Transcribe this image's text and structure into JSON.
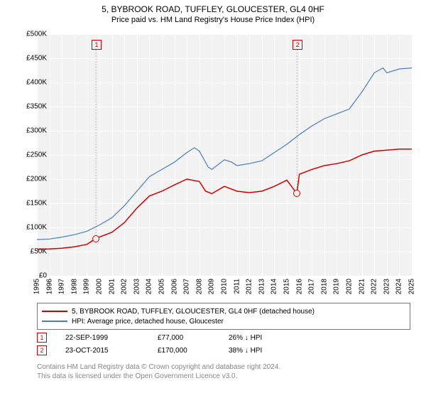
{
  "title_line1": "5, BYBROOK ROAD, TUFFLEY, GLOUCESTER, GL4 0HF",
  "title_line2": "Price paid vs. HM Land Registry's House Price Index (HPI)",
  "chart": {
    "type": "line",
    "background_color": "#f2f2f2",
    "grid_color": "#ffffff",
    "ylim": [
      0,
      500000
    ],
    "ytick_step": 50000,
    "ytick_prefix": "£",
    "ytick_suffix": "K",
    "ylabels": [
      "£0",
      "£50K",
      "£100K",
      "£150K",
      "£200K",
      "£250K",
      "£300K",
      "£350K",
      "£400K",
      "£450K",
      "£500K"
    ],
    "x_years": [
      1995,
      1996,
      1997,
      1998,
      1999,
      2000,
      2001,
      2002,
      2003,
      2004,
      2005,
      2006,
      2007,
      2008,
      2009,
      2010,
      2011,
      2012,
      2013,
      2014,
      2015,
      2016,
      2017,
      2018,
      2019,
      2020,
      2021,
      2022,
      2023,
      2024,
      2025
    ],
    "series": {
      "property": {
        "label": "5, BYBROOK ROAD, TUFFLEY, GLOUCESTER, GL4 0HF (detached house)",
        "color": "#d40000",
        "line_width": 1.5,
        "data": [
          [
            1995,
            55000
          ],
          [
            1996,
            55500
          ],
          [
            1997,
            57000
          ],
          [
            1998,
            60000
          ],
          [
            1999,
            65000
          ],
          [
            1999.72,
            77000
          ],
          [
            2000,
            80000
          ],
          [
            2001,
            90000
          ],
          [
            2002,
            110000
          ],
          [
            2003,
            140000
          ],
          [
            2004,
            165000
          ],
          [
            2005,
            175000
          ],
          [
            2006,
            188000
          ],
          [
            2007,
            200000
          ],
          [
            2008,
            195000
          ],
          [
            2008.5,
            175000
          ],
          [
            2009,
            170000
          ],
          [
            2010,
            185000
          ],
          [
            2010.5,
            180000
          ],
          [
            2011,
            175000
          ],
          [
            2012,
            172000
          ],
          [
            2013,
            175000
          ],
          [
            2014,
            185000
          ],
          [
            2015,
            198000
          ],
          [
            2015.8,
            170000
          ],
          [
            2016,
            210000
          ],
          [
            2017,
            220000
          ],
          [
            2018,
            228000
          ],
          [
            2019,
            232000
          ],
          [
            2020,
            238000
          ],
          [
            2021,
            250000
          ],
          [
            2022,
            258000
          ],
          [
            2023,
            260000
          ],
          [
            2024,
            262000
          ],
          [
            2025,
            262000
          ]
        ]
      },
      "hpi": {
        "label": "HPI: Average price, detached house, Gloucester",
        "color": "#4a7ebb",
        "line_width": 1.2,
        "data": [
          [
            1995,
            75000
          ],
          [
            1996,
            76000
          ],
          [
            1997,
            80000
          ],
          [
            1998,
            85000
          ],
          [
            1999,
            92000
          ],
          [
            2000,
            105000
          ],
          [
            2001,
            120000
          ],
          [
            2002,
            145000
          ],
          [
            2003,
            175000
          ],
          [
            2004,
            205000
          ],
          [
            2005,
            220000
          ],
          [
            2006,
            235000
          ],
          [
            2007,
            255000
          ],
          [
            2007.6,
            265000
          ],
          [
            2008,
            258000
          ],
          [
            2008.7,
            225000
          ],
          [
            2009,
            220000
          ],
          [
            2010,
            240000
          ],
          [
            2010.6,
            235000
          ],
          [
            2011,
            228000
          ],
          [
            2012,
            232000
          ],
          [
            2013,
            238000
          ],
          [
            2014,
            255000
          ],
          [
            2015,
            272000
          ],
          [
            2016,
            292000
          ],
          [
            2017,
            310000
          ],
          [
            2018,
            325000
          ],
          [
            2019,
            335000
          ],
          [
            2020,
            345000
          ],
          [
            2021,
            380000
          ],
          [
            2022,
            420000
          ],
          [
            2022.7,
            430000
          ],
          [
            2023,
            420000
          ],
          [
            2024,
            428000
          ],
          [
            2025,
            430000
          ]
        ]
      }
    },
    "sales": [
      {
        "marker": "1",
        "year": 1999.72,
        "price": 77000,
        "color": "#d40000"
      },
      {
        "marker": "2",
        "year": 2015.81,
        "price": 170000,
        "color": "#d40000"
      }
    ]
  },
  "legend": {
    "items": [
      {
        "color": "#d40000",
        "label": "5, BYBROOK ROAD, TUFFLEY, GLOUCESTER, GL4 0HF (detached house)"
      },
      {
        "color": "#4a7ebb",
        "label": "HPI: Average price, detached house, Gloucester"
      }
    ]
  },
  "events": [
    {
      "marker": "1",
      "color": "#d40000",
      "date": "22-SEP-1999",
      "price": "£77,000",
      "pct": "26% ↓ HPI"
    },
    {
      "marker": "2",
      "color": "#d40000",
      "date": "23-OCT-2015",
      "price": "£170,000",
      "pct": "38% ↓ HPI"
    }
  ],
  "footer_line1": "Contains HM Land Registry data © Crown copyright and database right 2024.",
  "footer_line2": "This data is licensed under the Open Government Licence v3.0."
}
